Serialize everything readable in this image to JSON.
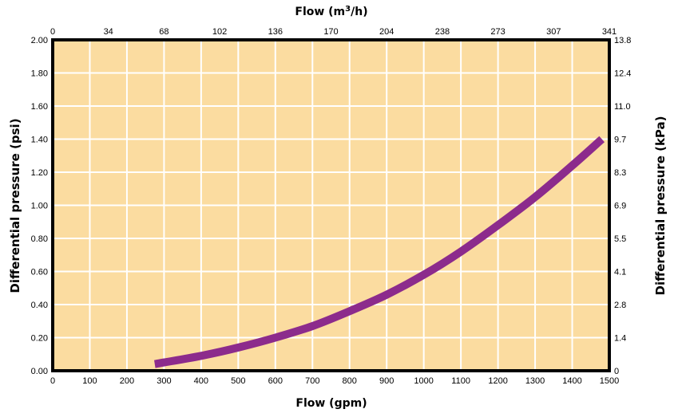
{
  "chart_data": {
    "type": "line",
    "title": "",
    "xlabel": "Flow (gpm)",
    "x2label_prefix": "Flow (m",
    "x2label_sup": "3",
    "x2label_suffix": "/h)",
    "ylabel": "Differential pressure (psi)",
    "y2label": "Differential pressure (kPa)",
    "xlim": [
      0,
      1500
    ],
    "ylim": [
      0,
      2.0
    ],
    "x_ticks": [
      "0",
      "100",
      "200",
      "300",
      "400",
      "500",
      "600",
      "700",
      "800",
      "900",
      "1000",
      "1100",
      "1200",
      "1300",
      "1400",
      "1500"
    ],
    "x2_ticks": [
      "0",
      "34",
      "68",
      "102",
      "136",
      "170",
      "204",
      "238",
      "273",
      "307",
      "341"
    ],
    "y_ticks": [
      "0.00",
      "0.20",
      "0.40",
      "0.60",
      "0.80",
      "1.00",
      "1.20",
      "1.40",
      "1.60",
      "1.80",
      "2.00"
    ],
    "y2_ticks": [
      "0",
      "1.4",
      "2.8",
      "4.1",
      "5.5",
      "6.9",
      "8.3",
      "9.7",
      "11.0",
      "12.4",
      "13.8"
    ],
    "grid": true,
    "series": [
      {
        "x": [
          275,
          300,
          400,
          500,
          600,
          700,
          800,
          900,
          1000,
          1100,
          1200,
          1300,
          1400,
          1480
        ],
        "y": [
          0.04,
          0.05,
          0.09,
          0.14,
          0.2,
          0.27,
          0.36,
          0.46,
          0.58,
          0.72,
          0.88,
          1.05,
          1.24,
          1.4
        ]
      }
    ],
    "colors": {
      "plot_bg": "#fbdca0",
      "grid": "#ffffff",
      "line": "#8c2b8c",
      "frame": "#000000"
    }
  }
}
